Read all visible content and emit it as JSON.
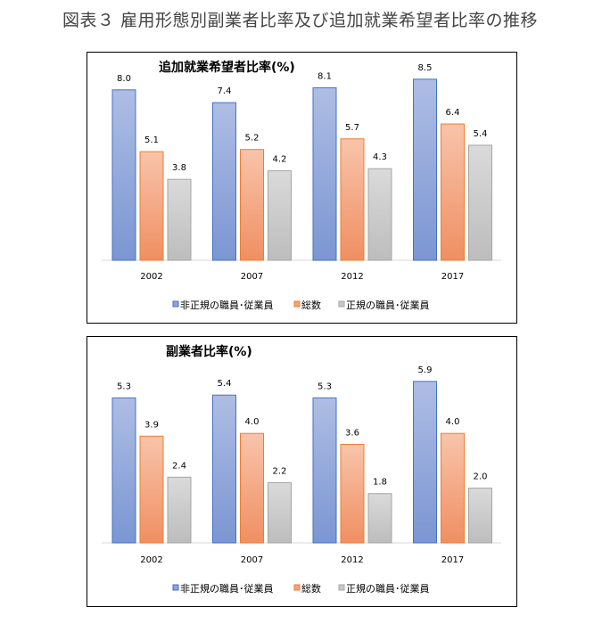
{
  "title": "図表３ 雇用形態別副業者比率及び追加就業希望者比率の推移",
  "colors": {
    "non_regular": "#8EA5DA",
    "total": "#F4A27C",
    "regular": "#C9C9C9"
  },
  "chart_data": [
    {
      "type": "bar",
      "title": "追加就業希望者比率(%)",
      "categories": [
        "2002",
        "2007",
        "2012",
        "2017"
      ],
      "series": [
        {
          "name": "非正規の職員･従業員",
          "values": [
            8.0,
            7.4,
            8.1,
            8.5
          ]
        },
        {
          "name": "総数",
          "values": [
            5.1,
            5.2,
            5.7,
            6.4
          ]
        },
        {
          "name": "正規の職員･従業員",
          "values": [
            3.8,
            4.2,
            4.3,
            5.4
          ]
        }
      ],
      "data_labels": true,
      "grid": false,
      "legend": "bottom"
    },
    {
      "type": "bar",
      "title": "副業者比率(%)",
      "categories": [
        "2002",
        "2007",
        "2012",
        "2017"
      ],
      "series": [
        {
          "name": "非正規の職員･従業員",
          "values": [
            5.3,
            5.4,
            5.3,
            5.9
          ]
        },
        {
          "name": "総数",
          "values": [
            3.9,
            4.0,
            3.6,
            4.0
          ]
        },
        {
          "name": "正規の職員･従業員",
          "values": [
            2.4,
            2.2,
            1.8,
            2.0
          ]
        }
      ],
      "data_labels": true,
      "grid": false,
      "legend": "bottom"
    }
  ]
}
